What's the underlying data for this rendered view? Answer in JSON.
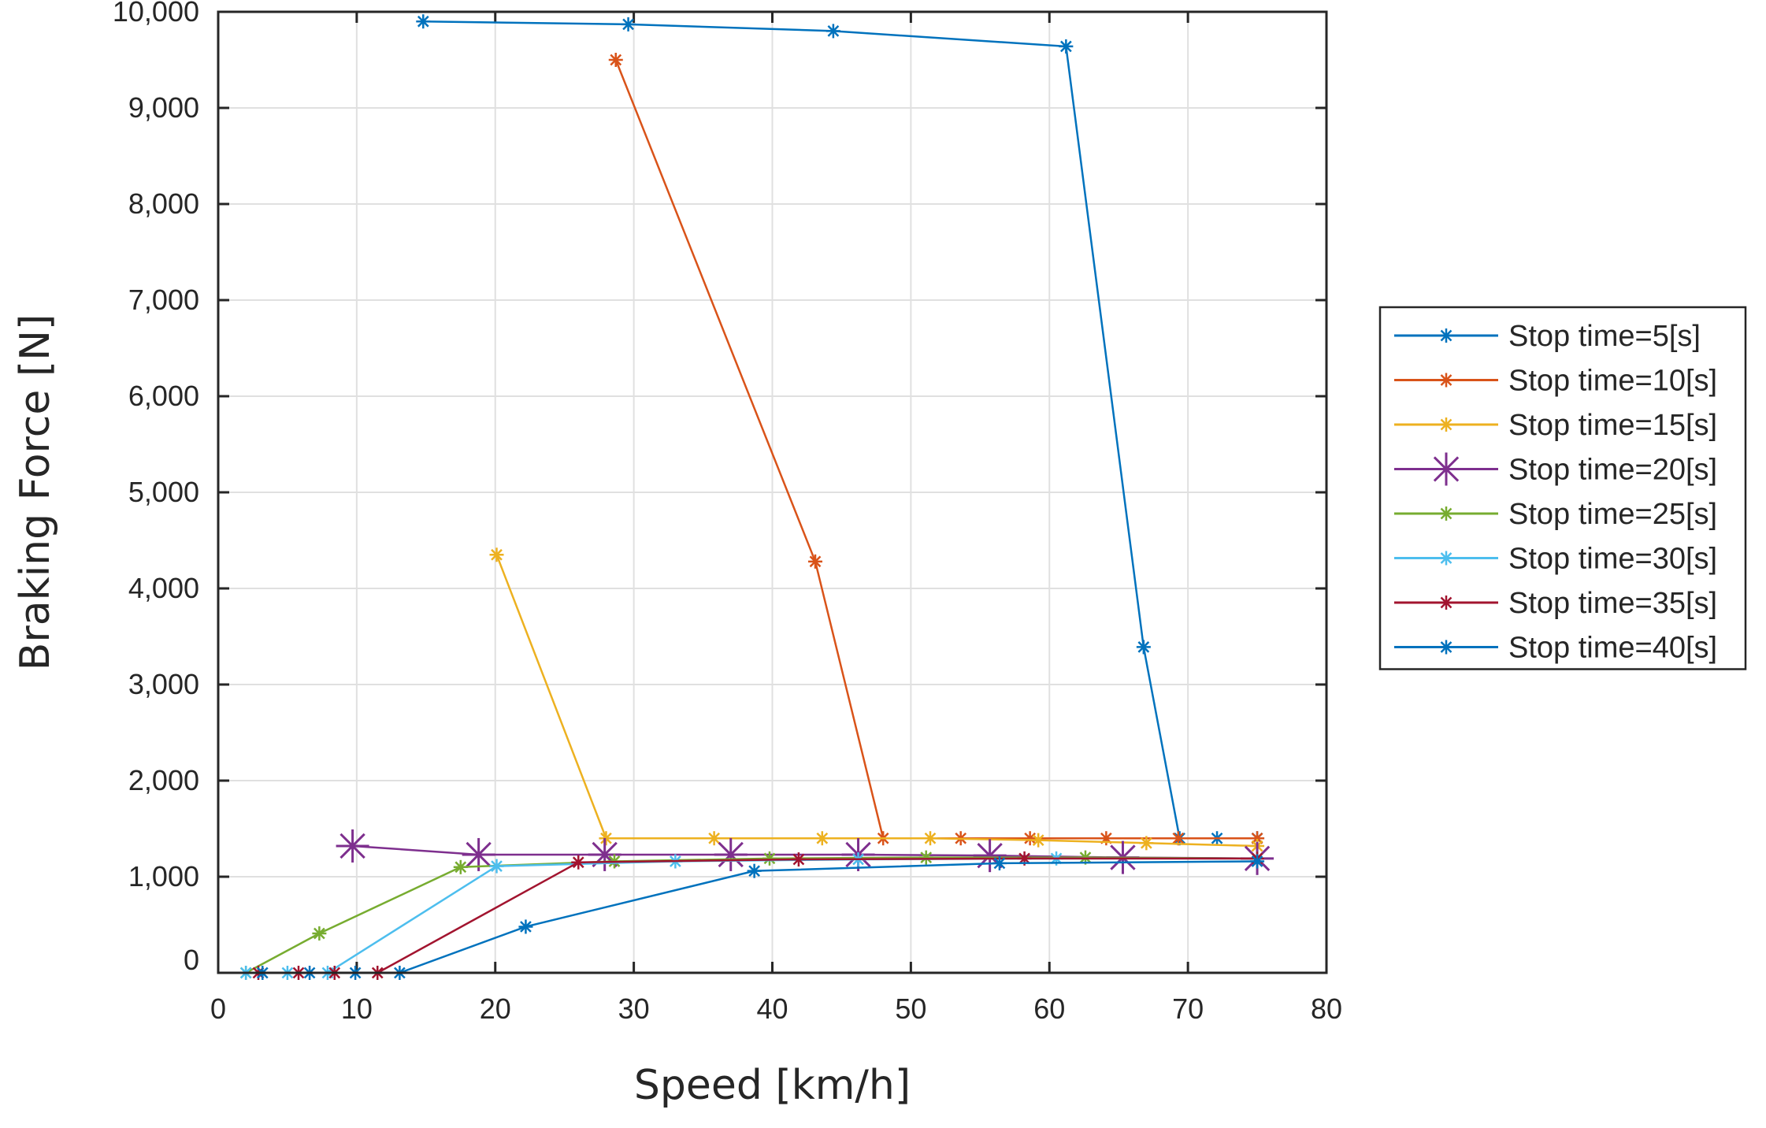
{
  "chart_data": {
    "type": "line",
    "title": "",
    "xlabel": "Speed [km/h]",
    "ylabel": "Braking Force [N]",
    "xlim": [
      0,
      80
    ],
    "ylim": [
      0,
      10000
    ],
    "xticks": [
      0,
      10,
      20,
      30,
      40,
      50,
      60,
      70,
      80
    ],
    "yticks": [
      0,
      1000,
      2000,
      3000,
      4000,
      5000,
      6000,
      7000,
      8000,
      9000,
      10000
    ],
    "xtick_labels": [
      "0",
      "10",
      "20",
      "30",
      "40",
      "50",
      "60",
      "70",
      "80"
    ],
    "ytick_labels": [
      "0",
      "1,000",
      "2,000",
      "3,000",
      "4,000",
      "5,000",
      "6,000",
      "7,000",
      "8,000",
      "9,000",
      "10,000"
    ],
    "grid": true,
    "legend_position": "right",
    "series": [
      {
        "name": "Stop time=5[s]",
        "color": "#0072BD",
        "marker": "asterisk",
        "x": [
          14.8,
          29.6,
          44.4,
          61.2,
          66.8,
          69.4,
          72.1,
          75.0
        ],
        "y": [
          9900,
          9870,
          9800,
          9640,
          3390,
          1400,
          1400,
          1400
        ]
      },
      {
        "name": "Stop time=10[s]",
        "color": "#D95319",
        "marker": "asterisk",
        "x": [
          28.7,
          43.1,
          48.0,
          53.6,
          58.6,
          64.1,
          69.3,
          75.0
        ],
        "y": [
          9500,
          4280,
          1400,
          1400,
          1400,
          1400,
          1400,
          1400
        ]
      },
      {
        "name": "Stop time=15[s]",
        "color": "#EDB120",
        "marker": "asterisk",
        "x": [
          20.1,
          28.0,
          35.8,
          43.6,
          51.4,
          59.2,
          67.0,
          75.0
        ],
        "y": [
          4350,
          1400,
          1400,
          1400,
          1400,
          1380,
          1350,
          1320
        ]
      },
      {
        "name": "Stop time=20[s]",
        "color": "#7E2F8E",
        "marker": "asterisk-large",
        "x": [
          9.7,
          18.8,
          27.9,
          37.0,
          46.2,
          55.7,
          65.3,
          75.0
        ],
        "y": [
          1320,
          1230,
          1230,
          1230,
          1230,
          1220,
          1200,
          1190
        ]
      },
      {
        "name": "Stop time=25[s]",
        "color": "#77AC30",
        "marker": "asterisk",
        "x": [
          2.0,
          7.3,
          17.5,
          28.6,
          39.8,
          51.1,
          62.6,
          75.0
        ],
        "y": [
          0,
          410,
          1100,
          1160,
          1190,
          1200,
          1200,
          1190
        ]
      },
      {
        "name": "Stop time=30[s]",
        "color": "#4DBEEE",
        "marker": "asterisk",
        "x": [
          2.0,
          5.0,
          7.9,
          20.1,
          33.0,
          46.2,
          60.5,
          75.0
        ],
        "y": [
          0,
          0,
          0,
          1110,
          1160,
          1180,
          1190,
          1190
        ]
      },
      {
        "name": "Stop time=35[s]",
        "color": "#A2142F",
        "marker": "asterisk",
        "x": [
          2.9,
          5.8,
          8.4,
          11.5,
          26.0,
          41.9,
          58.2,
          75.0
        ],
        "y": [
          0,
          0,
          0,
          0,
          1150,
          1180,
          1190,
          1190
        ]
      },
      {
        "name": "Stop time=40[s]",
        "color": "#0072BD",
        "marker": "asterisk",
        "x": [
          3.2,
          6.6,
          9.9,
          13.1,
          22.2,
          38.7,
          56.4,
          75.0
        ],
        "y": [
          0,
          0,
          0,
          0,
          480,
          1060,
          1140,
          1160
        ]
      }
    ]
  }
}
